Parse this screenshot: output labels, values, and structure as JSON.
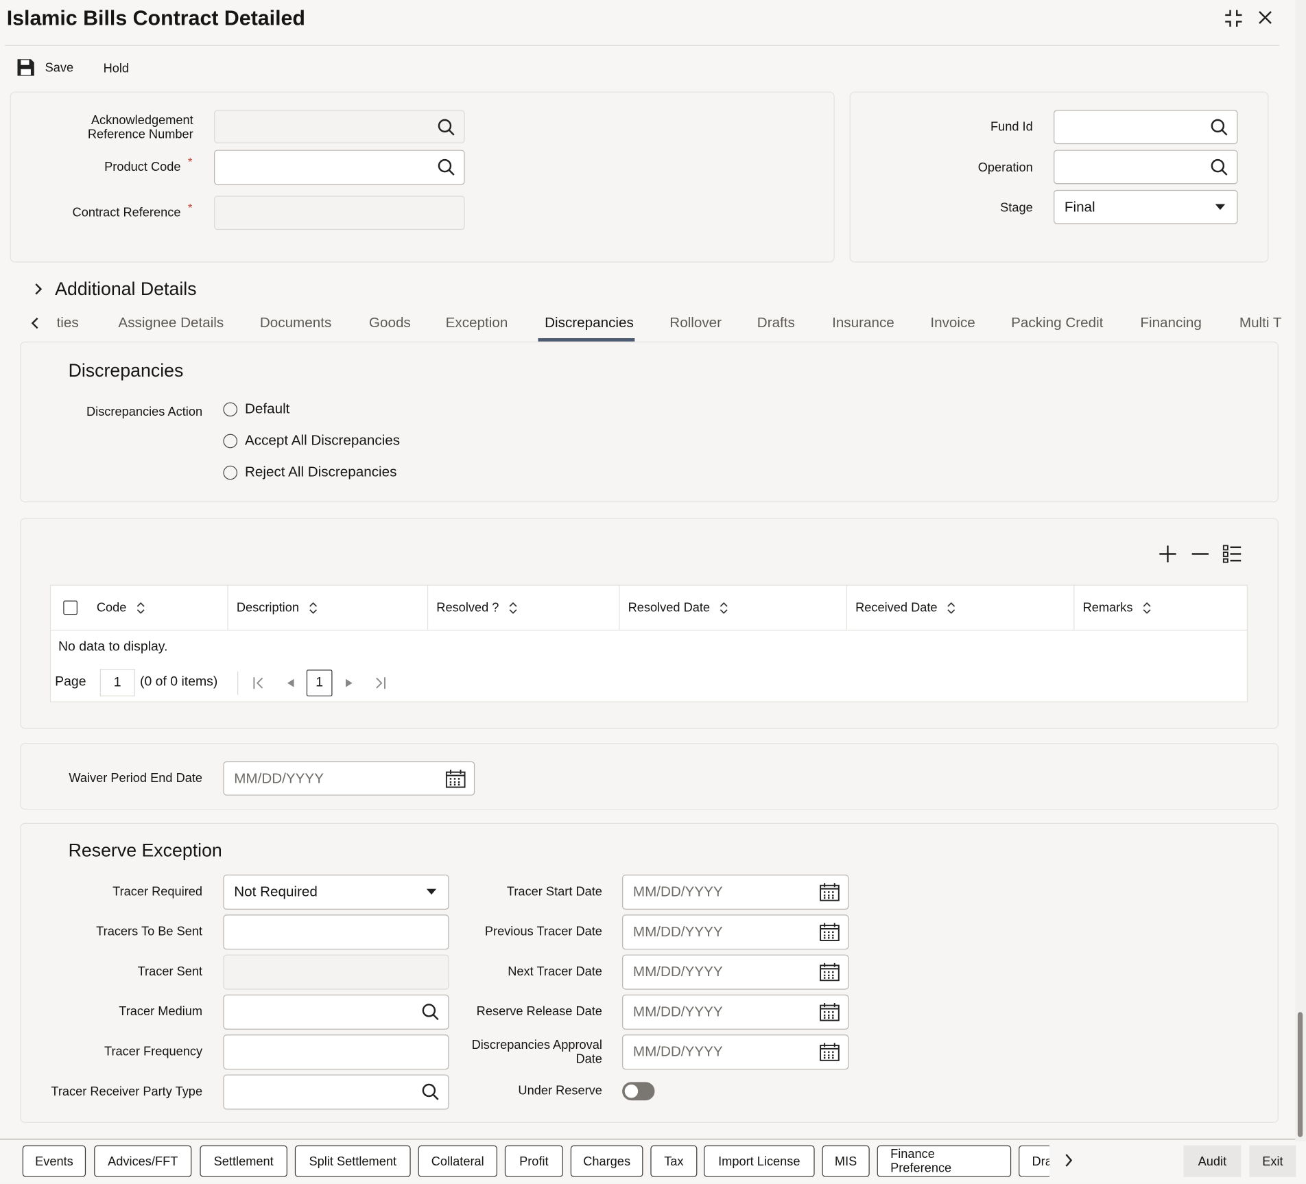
{
  "window": {
    "title": "Islamic Bills Contract Detailed"
  },
  "toolbar": {
    "save": "Save",
    "hold": "Hold"
  },
  "header": {
    "ack_ref_label_1": "Acknowledgement",
    "ack_ref_label_2": "Reference Number",
    "ack_ref_value": "",
    "product_code_label": "Product Code",
    "product_code_value": "",
    "contract_ref_label": "Contract Reference",
    "contract_ref_value": "",
    "required_mark": "*",
    "fund_id_label": "Fund Id",
    "fund_id_value": "",
    "operation_label": "Operation",
    "operation_value": "",
    "stage_label": "Stage",
    "stage_value": "Final"
  },
  "additional_details": "Additional Details",
  "tabs": [
    "ties",
    "Assignee Details",
    "Documents",
    "Goods",
    "Exception",
    "Discrepancies",
    "Rollover",
    "Drafts",
    "Insurance",
    "Invoice",
    "Packing Credit",
    "Financing",
    "Multi T"
  ],
  "active_tab": "Discrepancies",
  "discrepancies": {
    "heading": "Discrepancies",
    "action_label": "Discrepancies Action",
    "options": [
      "Default",
      "Accept All Discrepancies",
      "Reject All Discrepancies"
    ],
    "selected": null
  },
  "table": {
    "columns": [
      "Code",
      "Description",
      "Resolved ?",
      "Resolved Date",
      "Received Date",
      "Remarks"
    ],
    "rows": [],
    "empty": "No data to display.",
    "page_label": "Page",
    "page_value": "1",
    "items_text": "(0 of 0 items)",
    "current_page": "1"
  },
  "waiver": {
    "label": "Waiver Period End Date",
    "placeholder": "MM/DD/YYYY"
  },
  "reserve": {
    "heading": "Reserve Exception",
    "tracer_required_label": "Tracer Required",
    "tracer_required_value": "Not Required",
    "tracers_to_be_sent_label": "Tracers To Be Sent",
    "tracer_sent_label": "Tracer Sent",
    "tracer_medium_label": "Tracer Medium",
    "tracer_frequency_label": "Tracer Frequency",
    "tracer_receiver_label": "Tracer Receiver Party Type",
    "tracer_start_label": "Tracer Start Date",
    "previous_tracer_label": "Previous Tracer Date",
    "next_tracer_label": "Next Tracer Date",
    "reserve_release_label": "Reserve Release Date",
    "disc_approval_label_1": "Discrepancies Approval",
    "disc_approval_label_2": "Date",
    "under_reserve_label": "Under Reserve",
    "under_reserve_on": false,
    "date_placeholder": "MM/DD/YYYY"
  },
  "footer": {
    "buttons": [
      "Events",
      "Advices/FFT",
      "Settlement",
      "Split Settlement",
      "Collateral",
      "Profit",
      "Charges",
      "Tax",
      "Import License",
      "MIS",
      "Finance Preference",
      "Dra"
    ],
    "audit": "Audit",
    "exit": "Exit"
  }
}
